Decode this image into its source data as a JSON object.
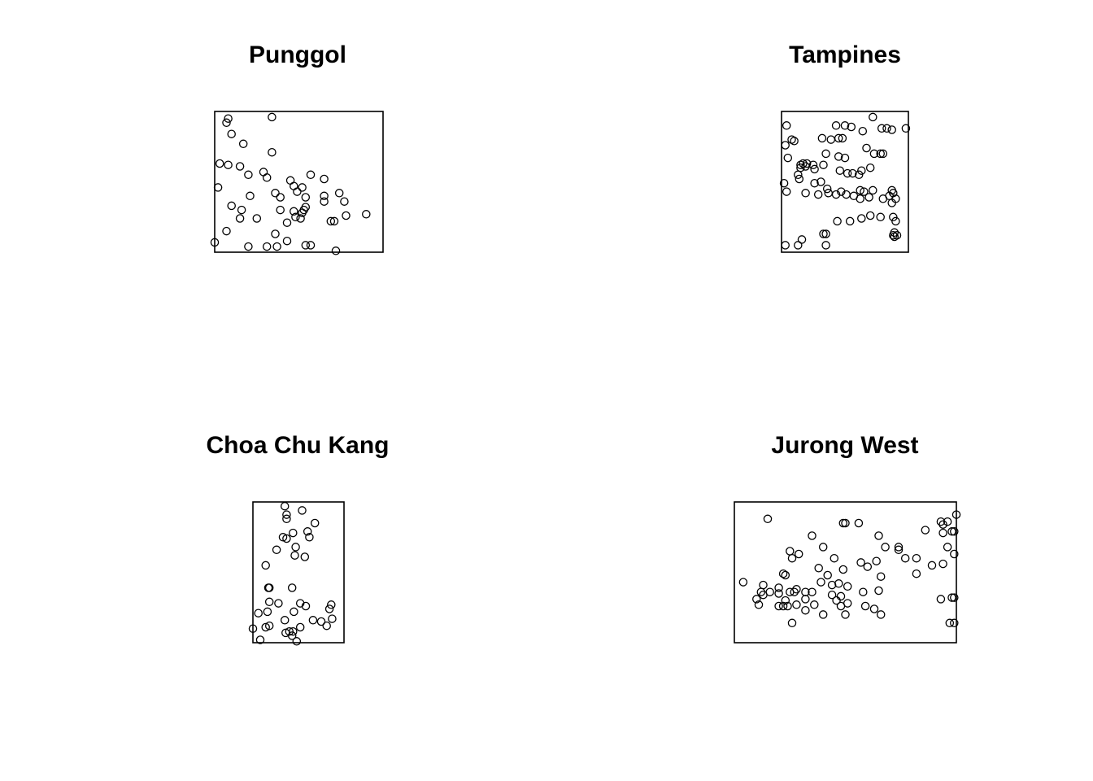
{
  "chart_data": [
    {
      "type": "scatter",
      "title": "Punggol",
      "xlim": [
        0,
        100
      ],
      "ylim": [
        0,
        100
      ],
      "colors": {
        "point": "#000000",
        "frame": "#000000"
      },
      "points": [
        [
          8,
          95
        ],
        [
          7,
          92
        ],
        [
          10,
          84
        ],
        [
          34,
          96
        ],
        [
          17,
          77
        ],
        [
          34,
          71
        ],
        [
          3,
          63
        ],
        [
          8,
          62
        ],
        [
          15,
          61
        ],
        [
          20,
          55
        ],
        [
          29,
          57
        ],
        [
          31,
          53
        ],
        [
          45,
          51
        ],
        [
          47,
          47
        ],
        [
          52,
          46
        ],
        [
          57,
          55
        ],
        [
          65,
          52
        ],
        [
          2,
          46
        ],
        [
          49,
          43
        ],
        [
          54,
          39
        ],
        [
          65,
          36
        ],
        [
          65,
          40
        ],
        [
          74,
          42
        ],
        [
          77,
          36
        ],
        [
          21,
          40
        ],
        [
          36,
          42
        ],
        [
          39,
          39
        ],
        [
          10,
          33
        ],
        [
          16,
          30
        ],
        [
          39,
          30
        ],
        [
          52,
          28
        ],
        [
          53,
          30
        ],
        [
          54,
          32
        ],
        [
          51,
          24
        ],
        [
          48,
          25
        ],
        [
          47,
          29
        ],
        [
          43,
          21
        ],
        [
          25,
          24
        ],
        [
          15,
          24
        ],
        [
          69,
          22
        ],
        [
          71,
          22
        ],
        [
          78,
          26
        ],
        [
          90,
          27
        ],
        [
          7,
          15
        ],
        [
          36,
          13
        ],
        [
          43,
          8
        ],
        [
          0,
          7
        ],
        [
          20,
          4
        ],
        [
          31,
          4
        ],
        [
          37,
          4
        ],
        [
          54,
          5
        ],
        [
          57,
          5
        ],
        [
          72,
          1
        ]
      ]
    },
    {
      "type": "scatter",
      "title": "Tampines",
      "xlim": [
        0,
        100
      ],
      "ylim": [
        0,
        100
      ],
      "colors": {
        "point": "#000000",
        "frame": "#000000"
      },
      "points": [
        [
          4,
          90
        ],
        [
          8,
          80
        ],
        [
          10,
          79
        ],
        [
          3,
          76
        ],
        [
          5,
          67
        ],
        [
          32,
          81
        ],
        [
          39,
          80
        ],
        [
          45,
          81
        ],
        [
          48,
          81
        ],
        [
          43,
          90
        ],
        [
          50,
          90
        ],
        [
          55,
          89
        ],
        [
          64,
          86
        ],
        [
          72,
          96
        ],
        [
          79,
          88
        ],
        [
          83,
          88
        ],
        [
          87,
          87
        ],
        [
          98,
          88
        ],
        [
          67,
          74
        ],
        [
          73,
          70
        ],
        [
          78,
          70
        ],
        [
          80,
          70
        ],
        [
          35,
          70
        ],
        [
          45,
          68
        ],
        [
          50,
          67
        ],
        [
          70,
          60
        ],
        [
          25,
          62
        ],
        [
          33,
          62
        ],
        [
          20,
          63
        ],
        [
          17,
          63
        ],
        [
          15,
          62
        ],
        [
          19,
          61
        ],
        [
          26,
          59
        ],
        [
          15,
          60
        ],
        [
          46,
          58
        ],
        [
          63,
          58
        ],
        [
          52,
          56
        ],
        [
          56,
          56
        ],
        [
          61,
          55
        ],
        [
          14,
          52
        ],
        [
          26,
          49
        ],
        [
          31,
          50
        ],
        [
          13,
          55
        ],
        [
          2,
          49
        ],
        [
          4,
          43
        ],
        [
          19,
          42
        ],
        [
          29,
          41
        ],
        [
          36,
          45
        ],
        [
          37,
          42
        ],
        [
          43,
          41
        ],
        [
          47,
          43
        ],
        [
          51,
          41
        ],
        [
          57,
          40
        ],
        [
          62,
          38
        ],
        [
          69,
          39
        ],
        [
          65,
          43
        ],
        [
          62,
          44
        ],
        [
          72,
          44
        ],
        [
          80,
          38
        ],
        [
          87,
          44
        ],
        [
          85,
          40
        ],
        [
          87,
          35
        ],
        [
          90,
          38
        ],
        [
          88,
          42
        ],
        [
          78,
          25
        ],
        [
          88,
          25
        ],
        [
          90,
          22
        ],
        [
          44,
          22
        ],
        [
          54,
          22
        ],
        [
          63,
          24
        ],
        [
          70,
          26
        ],
        [
          89,
          14
        ],
        [
          88,
          12
        ],
        [
          89,
          11
        ],
        [
          91,
          12
        ],
        [
          33,
          13
        ],
        [
          35,
          13
        ],
        [
          16,
          9
        ],
        [
          3,
          5
        ],
        [
          13,
          5
        ],
        [
          35,
          5
        ]
      ]
    },
    {
      "type": "scatter",
      "title": "Choa Chu Kang",
      "xlim": [
        0,
        100
      ],
      "ylim": [
        0,
        100
      ],
      "colors": {
        "point": "#000000",
        "frame": "#000000"
      },
      "points": [
        [
          35,
          97
        ],
        [
          54,
          94
        ],
        [
          37,
          91
        ],
        [
          37,
          88
        ],
        [
          68,
          85
        ],
        [
          60,
          79
        ],
        [
          44,
          78
        ],
        [
          62,
          75
        ],
        [
          33,
          75
        ],
        [
          37,
          74
        ],
        [
          47,
          68
        ],
        [
          26,
          66
        ],
        [
          46,
          62
        ],
        [
          57,
          61
        ],
        [
          14,
          55
        ],
        [
          18,
          39
        ],
        [
          17,
          39
        ],
        [
          43,
          39
        ],
        [
          18,
          29
        ],
        [
          28,
          28
        ],
        [
          52,
          28
        ],
        [
          58,
          26
        ],
        [
          16,
          22
        ],
        [
          45,
          22
        ],
        [
          6,
          21
        ],
        [
          86,
          27
        ],
        [
          84,
          24
        ],
        [
          35,
          16
        ],
        [
          87,
          17
        ],
        [
          66,
          16
        ],
        [
          75,
          15
        ],
        [
          81,
          12
        ],
        [
          18,
          12
        ],
        [
          14,
          11
        ],
        [
          0,
          10
        ],
        [
          52,
          11
        ],
        [
          40,
          8
        ],
        [
          44,
          8
        ],
        [
          36,
          7
        ],
        [
          43,
          5
        ],
        [
          8,
          2
        ],
        [
          48,
          1
        ]
      ]
    },
    {
      "type": "scatter",
      "title": "Jurong West",
      "xlim": [
        0,
        100
      ],
      "ylim": [
        0,
        100
      ],
      "colors": {
        "point": "#000000",
        "frame": "#000000"
      },
      "points": [
        [
          15,
          88
        ],
        [
          49,
          85
        ],
        [
          50,
          85
        ],
        [
          56,
          85
        ],
        [
          94,
          84
        ],
        [
          100,
          91
        ],
        [
          93,
          86
        ],
        [
          96,
          86
        ],
        [
          94,
          78
        ],
        [
          98,
          79
        ],
        [
          99,
          79
        ],
        [
          86,
          80
        ],
        [
          35,
          76
        ],
        [
          65,
          76
        ],
        [
          40,
          68
        ],
        [
          68,
          68
        ],
        [
          74,
          68
        ],
        [
          74,
          66
        ],
        [
          25,
          65
        ],
        [
          29,
          63
        ],
        [
          26,
          60
        ],
        [
          45,
          60
        ],
        [
          57,
          57
        ],
        [
          64,
          58
        ],
        [
          77,
          60
        ],
        [
          82,
          60
        ],
        [
          94,
          56
        ],
        [
          96,
          68
        ],
        [
          99,
          63
        ],
        [
          89,
          55
        ],
        [
          38,
          53
        ],
        [
          49,
          52
        ],
        [
          60,
          54
        ],
        [
          22,
          49
        ],
        [
          23,
          48
        ],
        [
          42,
          48
        ],
        [
          66,
          47
        ],
        [
          82,
          49
        ],
        [
          47,
          42
        ],
        [
          44,
          41
        ],
        [
          39,
          43
        ],
        [
          51,
          40
        ],
        [
          13,
          34
        ],
        [
          12,
          36
        ],
        [
          16,
          36
        ],
        [
          20,
          35
        ],
        [
          25,
          36
        ],
        [
          27,
          36
        ],
        [
          35,
          36
        ],
        [
          20,
          39
        ],
        [
          28,
          38
        ],
        [
          32,
          36
        ],
        [
          44,
          34
        ],
        [
          48,
          33
        ],
        [
          58,
          36
        ],
        [
          65,
          37
        ],
        [
          11,
          27
        ],
        [
          10,
          31
        ],
        [
          23,
          30
        ],
        [
          32,
          31
        ],
        [
          46,
          30
        ],
        [
          51,
          28
        ],
        [
          59,
          26
        ],
        [
          48,
          26
        ],
        [
          40,
          20
        ],
        [
          32,
          23
        ],
        [
          20,
          26
        ],
        [
          22,
          26
        ],
        [
          24,
          26
        ],
        [
          28,
          27
        ],
        [
          36,
          27
        ],
        [
          50,
          20
        ],
        [
          63,
          24
        ],
        [
          66,
          20
        ],
        [
          93,
          31
        ],
        [
          98,
          32
        ],
        [
          99,
          32
        ],
        [
          13,
          41
        ],
        [
          4,
          43
        ],
        [
          26,
          14
        ],
        [
          99,
          14
        ],
        [
          97,
          14
        ]
      ]
    }
  ]
}
